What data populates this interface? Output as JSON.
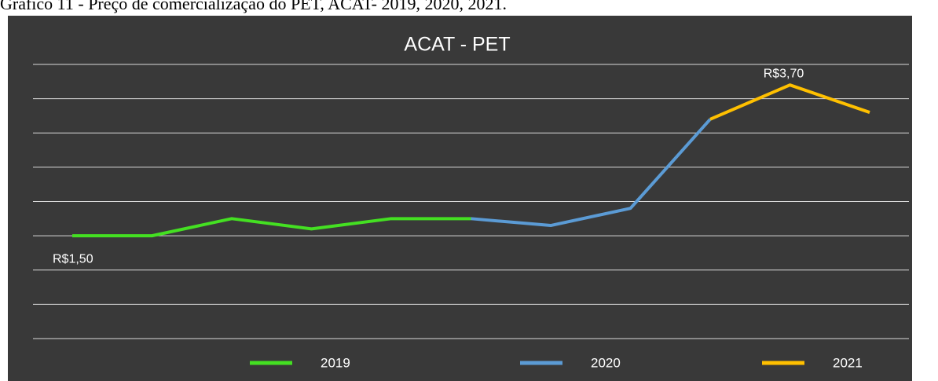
{
  "caption": "Gráfico 11 - Preço de comercialização do PET, ACAT- 2019, 2020, 2021.",
  "chart_data": {
    "type": "line",
    "title": "ACAT - PET",
    "categories": [
      null,
      null,
      null,
      null,
      null,
      null,
      null,
      null,
      null,
      null,
      null
    ],
    "series": [
      {
        "name": "2019",
        "color": "#44e022",
        "values": [
          1.5,
          1.5,
          1.75,
          1.6,
          1.75,
          1.75,
          null,
          null,
          null,
          null,
          null
        ],
        "value_labels": [
          "R$1,50",
          null,
          null,
          null,
          null,
          null,
          null,
          null,
          null,
          null,
          null
        ]
      },
      {
        "name": "2020",
        "color": "#5b9bd5",
        "values": [
          null,
          null,
          null,
          null,
          null,
          1.75,
          1.65,
          1.9,
          3.2,
          null,
          null
        ]
      },
      {
        "name": "2021",
        "color": "#ffc000",
        "values": [
          null,
          null,
          null,
          null,
          null,
          null,
          null,
          null,
          3.2,
          3.7,
          3.3
        ],
        "value_labels": [
          null,
          null,
          null,
          null,
          null,
          null,
          null,
          null,
          null,
          "R$3,70",
          null
        ]
      }
    ],
    "ylim": [
      0,
      4
    ],
    "yticks": [
      0,
      0.5,
      1,
      1.5,
      2,
      2.5,
      3,
      3.5,
      4
    ],
    "grid": true,
    "legend": "bottom"
  }
}
